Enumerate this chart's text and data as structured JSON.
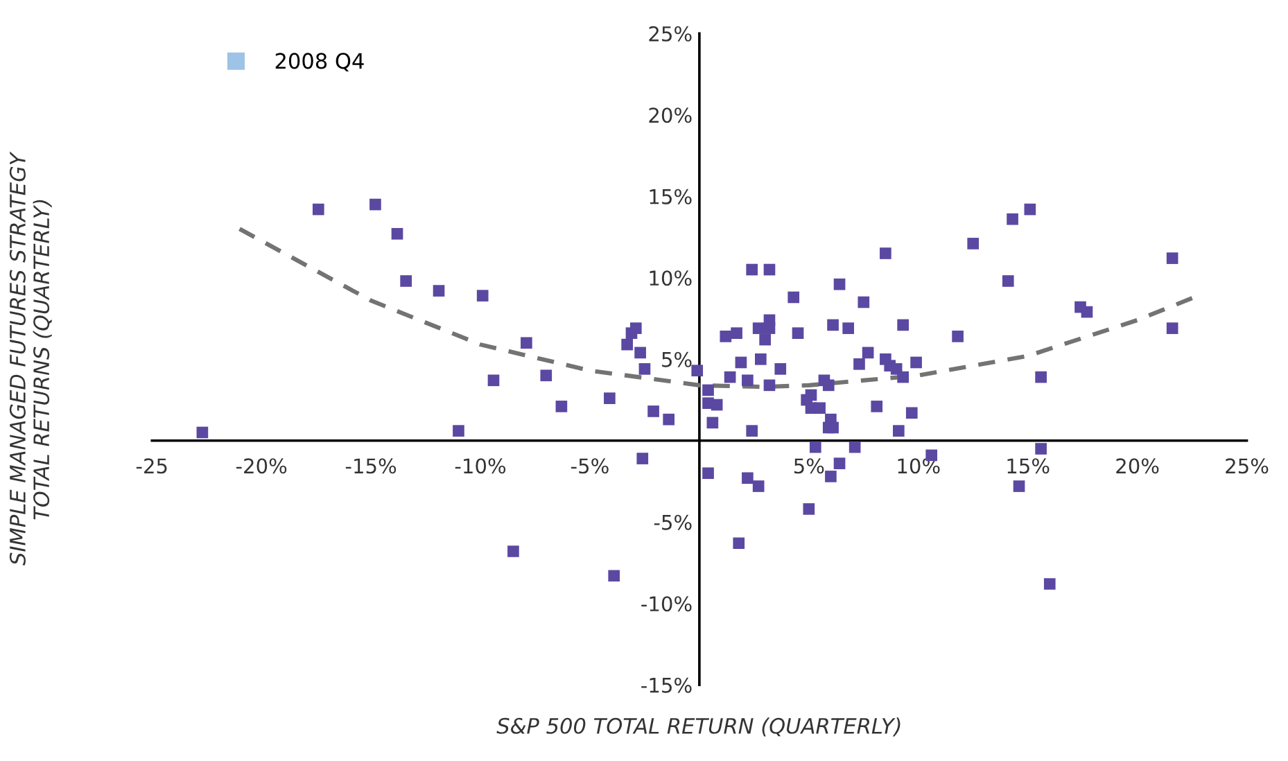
{
  "chart_data": {
    "type": "scatter",
    "xlabel": "S&P 500 TOTAL RETURN (QUARTERLY)",
    "ylabel": "SIMPLE MANAGED FUTURES STRATEGY\nTOTAL RETURNS (QUARTERLY)",
    "xlim": [
      -25,
      25
    ],
    "ylim": [
      -15,
      25
    ],
    "xticks": [
      {
        "value": -25,
        "label": "-25"
      },
      {
        "value": -20,
        "label": "-20%"
      },
      {
        "value": -15,
        "label": "-15%"
      },
      {
        "value": -10,
        "label": "-10%"
      },
      {
        "value": -5,
        "label": "-5%"
      },
      {
        "value": 5,
        "label": "5%"
      },
      {
        "value": 10,
        "label": "10%"
      },
      {
        "value": 15,
        "label": "15%"
      },
      {
        "value": 20,
        "label": "20%"
      },
      {
        "value": 25,
        "label": "25%"
      }
    ],
    "yticks": [
      {
        "value": -15,
        "label": "-15%"
      },
      {
        "value": -10,
        "label": "-10%"
      },
      {
        "value": -5,
        "label": "-5%"
      },
      {
        "value": 5,
        "label": "5%"
      },
      {
        "value": 10,
        "label": "10%"
      },
      {
        "value": 15,
        "label": "15%"
      },
      {
        "value": 20,
        "label": "20%"
      },
      {
        "value": 25,
        "label": "25%"
      }
    ],
    "grid": false,
    "legend": "top left",
    "marker": "square",
    "series": [
      {
        "color": "#5b48a2",
        "x": [
          -22.7,
          -17.4,
          -14.8,
          -13.8,
          -13.4,
          -11.9,
          -9.9,
          -11.0,
          -9.4,
          -7.9,
          -7.0,
          -6.3,
          -8.5,
          -4.1,
          -3.3,
          -3.1,
          -2.9,
          -2.7,
          -2.5,
          -2.1,
          -1.4,
          -2.6,
          -3.9,
          -0.1,
          0.4,
          0.4,
          0.8,
          0.6,
          0.4,
          1.2,
          1.7,
          1.9,
          1.4,
          2.2,
          2.4,
          3.2,
          4.3,
          2.7,
          3.2,
          3.2,
          3.0,
          2.8,
          3.7,
          3.2,
          4.5,
          2.4,
          2.2,
          2.7,
          1.8,
          5.0,
          6.4,
          7.5,
          8.5,
          6.1,
          6.8,
          9.3,
          7.7,
          7.3,
          8.5,
          8.7,
          9.0,
          9.3,
          9.9,
          5.7,
          5.9,
          5.1,
          4.9,
          5.1,
          5.5,
          6.0,
          5.9,
          6.1,
          8.1,
          9.7,
          9.1,
          5.3,
          7.1,
          6.4,
          6.0,
          10.6,
          11.8,
          12.5,
          14.1,
          14.3,
          15.1,
          15.6,
          15.6,
          14.6,
          16.0,
          17.4,
          17.7,
          21.6,
          21.6
        ],
        "values": [
          0.5,
          14.2,
          14.5,
          12.7,
          9.8,
          9.2,
          8.9,
          0.6,
          3.7,
          6.0,
          4.0,
          2.1,
          -6.8,
          2.6,
          5.9,
          6.6,
          6.9,
          5.4,
          4.4,
          1.8,
          1.3,
          -1.1,
          -8.3,
          4.3,
          3.1,
          2.3,
          2.2,
          1.1,
          -2.0,
          6.4,
          6.6,
          4.8,
          3.9,
          3.7,
          10.5,
          10.5,
          8.8,
          6.9,
          7.4,
          6.9,
          6.2,
          5.0,
          4.4,
          3.4,
          6.6,
          0.6,
          -2.3,
          -2.8,
          -6.3,
          -4.2,
          9.6,
          8.5,
          11.5,
          7.1,
          6.9,
          7.1,
          5.4,
          4.7,
          5.0,
          4.6,
          4.4,
          3.9,
          4.8,
          3.7,
          3.4,
          2.8,
          2.5,
          2.0,
          2.0,
          1.3,
          0.8,
          0.8,
          2.1,
          1.7,
          0.6,
          -0.4,
          -0.4,
          -1.4,
          -2.2,
          -0.9,
          6.4,
          12.1,
          9.8,
          13.6,
          14.2,
          3.9,
          -0.5,
          -2.8,
          -8.8,
          8.2,
          7.9,
          11.2,
          6.9
        ]
      },
      {
        "name": "2008 Q4",
        "color": "#9dc3e6"
      },
      {
        "type": "line",
        "color": "#737373",
        "line_style": "dashed",
        "marker": "none",
        "x": [
          -21,
          -15,
          -10,
          -5,
          0,
          3,
          5,
          10,
          15,
          20,
          22.6
        ],
        "values": [
          13.0,
          8.6,
          5.9,
          4.3,
          3.4,
          3.3,
          3.4,
          4.0,
          5.2,
          7.4,
          8.8
        ]
      }
    ]
  }
}
